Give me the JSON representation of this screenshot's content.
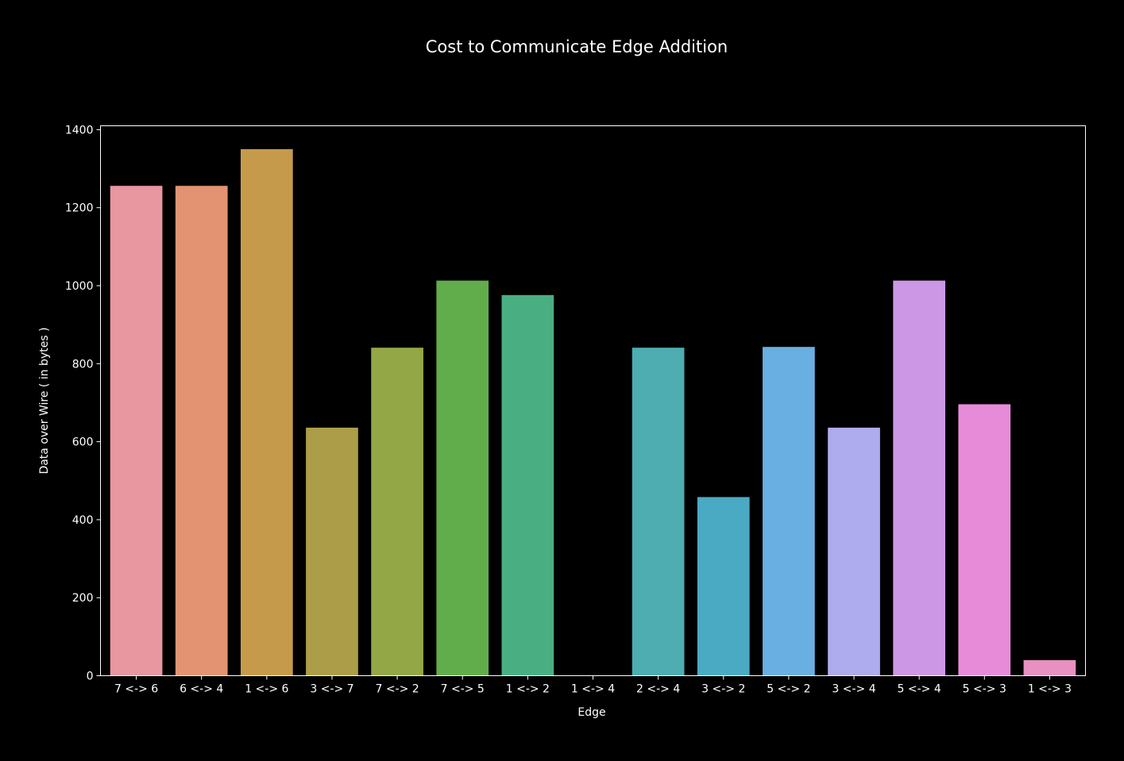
{
  "chart_data": {
    "type": "bar",
    "title": "Cost to Communicate Edge Addition",
    "xlabel": "Edge",
    "ylabel": "Data over Wire ( in bytes )",
    "ylim": [
      0,
      1410
    ],
    "yticks": [
      0,
      200,
      400,
      600,
      800,
      1000,
      1200,
      1400
    ],
    "grid": false,
    "legend": "none",
    "categories": [
      "7 <-> 6",
      "6 <-> 4",
      "1 <-> 6",
      "3 <-> 7",
      "7 <-> 2",
      "7 <-> 5",
      "1 <-> 2",
      "1 <-> 4",
      "2 <-> 4",
      "3 <-> 2",
      "5 <-> 2",
      "3 <-> 4",
      "5 <-> 4",
      "5 <-> 3",
      "1 <-> 3"
    ],
    "values": [
      1256,
      1256,
      1350,
      636,
      841,
      1013,
      976,
      0,
      841,
      458,
      843,
      636,
      1013,
      696,
      40
    ],
    "colors": [
      "#e8969f",
      "#e39371",
      "#c69a4b",
      "#ac9e48",
      "#93a747",
      "#62ad4b",
      "#4aae83",
      "#4cad99",
      "#4dadb1",
      "#4baac3",
      "#6aafe2",
      "#aeabee",
      "#cc98e6",
      "#e78bd9",
      "#e891c0"
    ],
    "background": "#000000",
    "foreground": "#ffffff"
  }
}
